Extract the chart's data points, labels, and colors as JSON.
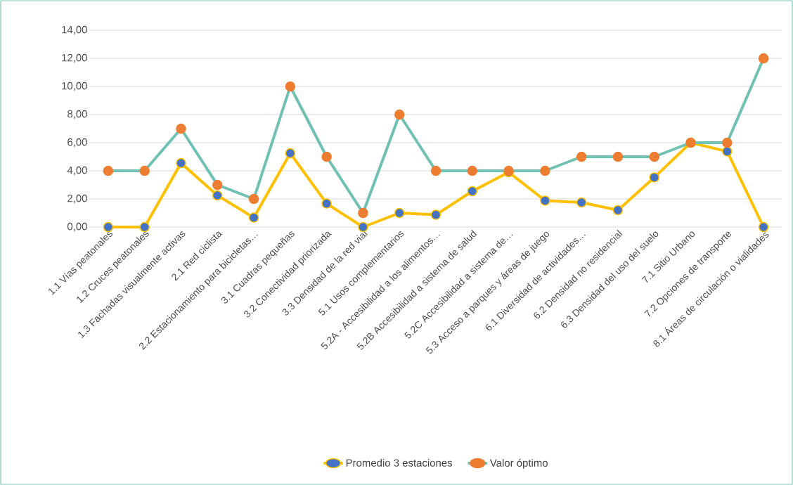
{
  "chart_data": {
    "type": "line",
    "categories": [
      "1.1 Vías peatonales",
      "1.2 Cruces peatonales",
      "1.3 Fachadas visualmente activas",
      "2.1 Red ciclista",
      "2.2 Estacionamiento para bicicletas…",
      "3.1 Cuadras pequeñas",
      "3.2 Conectividad priorizada",
      "3.3 Densidad de la red vial",
      "5.1 Usos complementarios",
      "5.2A - Accesibilidad a los alimentos…",
      "5.2B Accesibilidad a sistema de salud",
      "5.2C Accesibilidad a sistema de…",
      "5.3 Acceso a parques y áreas de juego",
      "6.1 Diversidad de actividades…",
      "6.2 Densidad no residencial",
      "6.3 Densidad del uso del suelo",
      "7.1 Sitio Urbano",
      "7.2 Opciones de transporte",
      "8.1 Áreas de circulación o vialidades"
    ],
    "series": [
      {
        "name": "Promedio 3 estaciones",
        "color": "#ffc000",
        "values": [
          0,
          0,
          4.55,
          2.25,
          0.67,
          5.25,
          1.67,
          0,
          1.0,
          0.87,
          2.55,
          3.9,
          1.88,
          1.75,
          1.2,
          3.53,
          6.0,
          5.38,
          0
        ]
      },
      {
        "name": "Valor óptimo",
        "color": "#70c1b3",
        "values": [
          4,
          4,
          7,
          3,
          2,
          10,
          5,
          1,
          8,
          4,
          4,
          4,
          4,
          5,
          5,
          5,
          6,
          6,
          12
        ]
      }
    ],
    "ylim": [
      0,
      14
    ],
    "yticks": [
      {
        "value": 0,
        "label": "0,00"
      },
      {
        "value": 2,
        "label": "2,00"
      },
      {
        "value": 4,
        "label": "4,00"
      },
      {
        "value": 6,
        "label": "6,00"
      },
      {
        "value": 8,
        "label": "8,00"
      },
      {
        "value": 10,
        "label": "10,00"
      },
      {
        "value": 12,
        "label": "12,00"
      },
      {
        "value": 14,
        "label": "14,00"
      }
    ],
    "grid": "y",
    "legend": "bottom",
    "marker": "circle",
    "line_style": "solid"
  }
}
